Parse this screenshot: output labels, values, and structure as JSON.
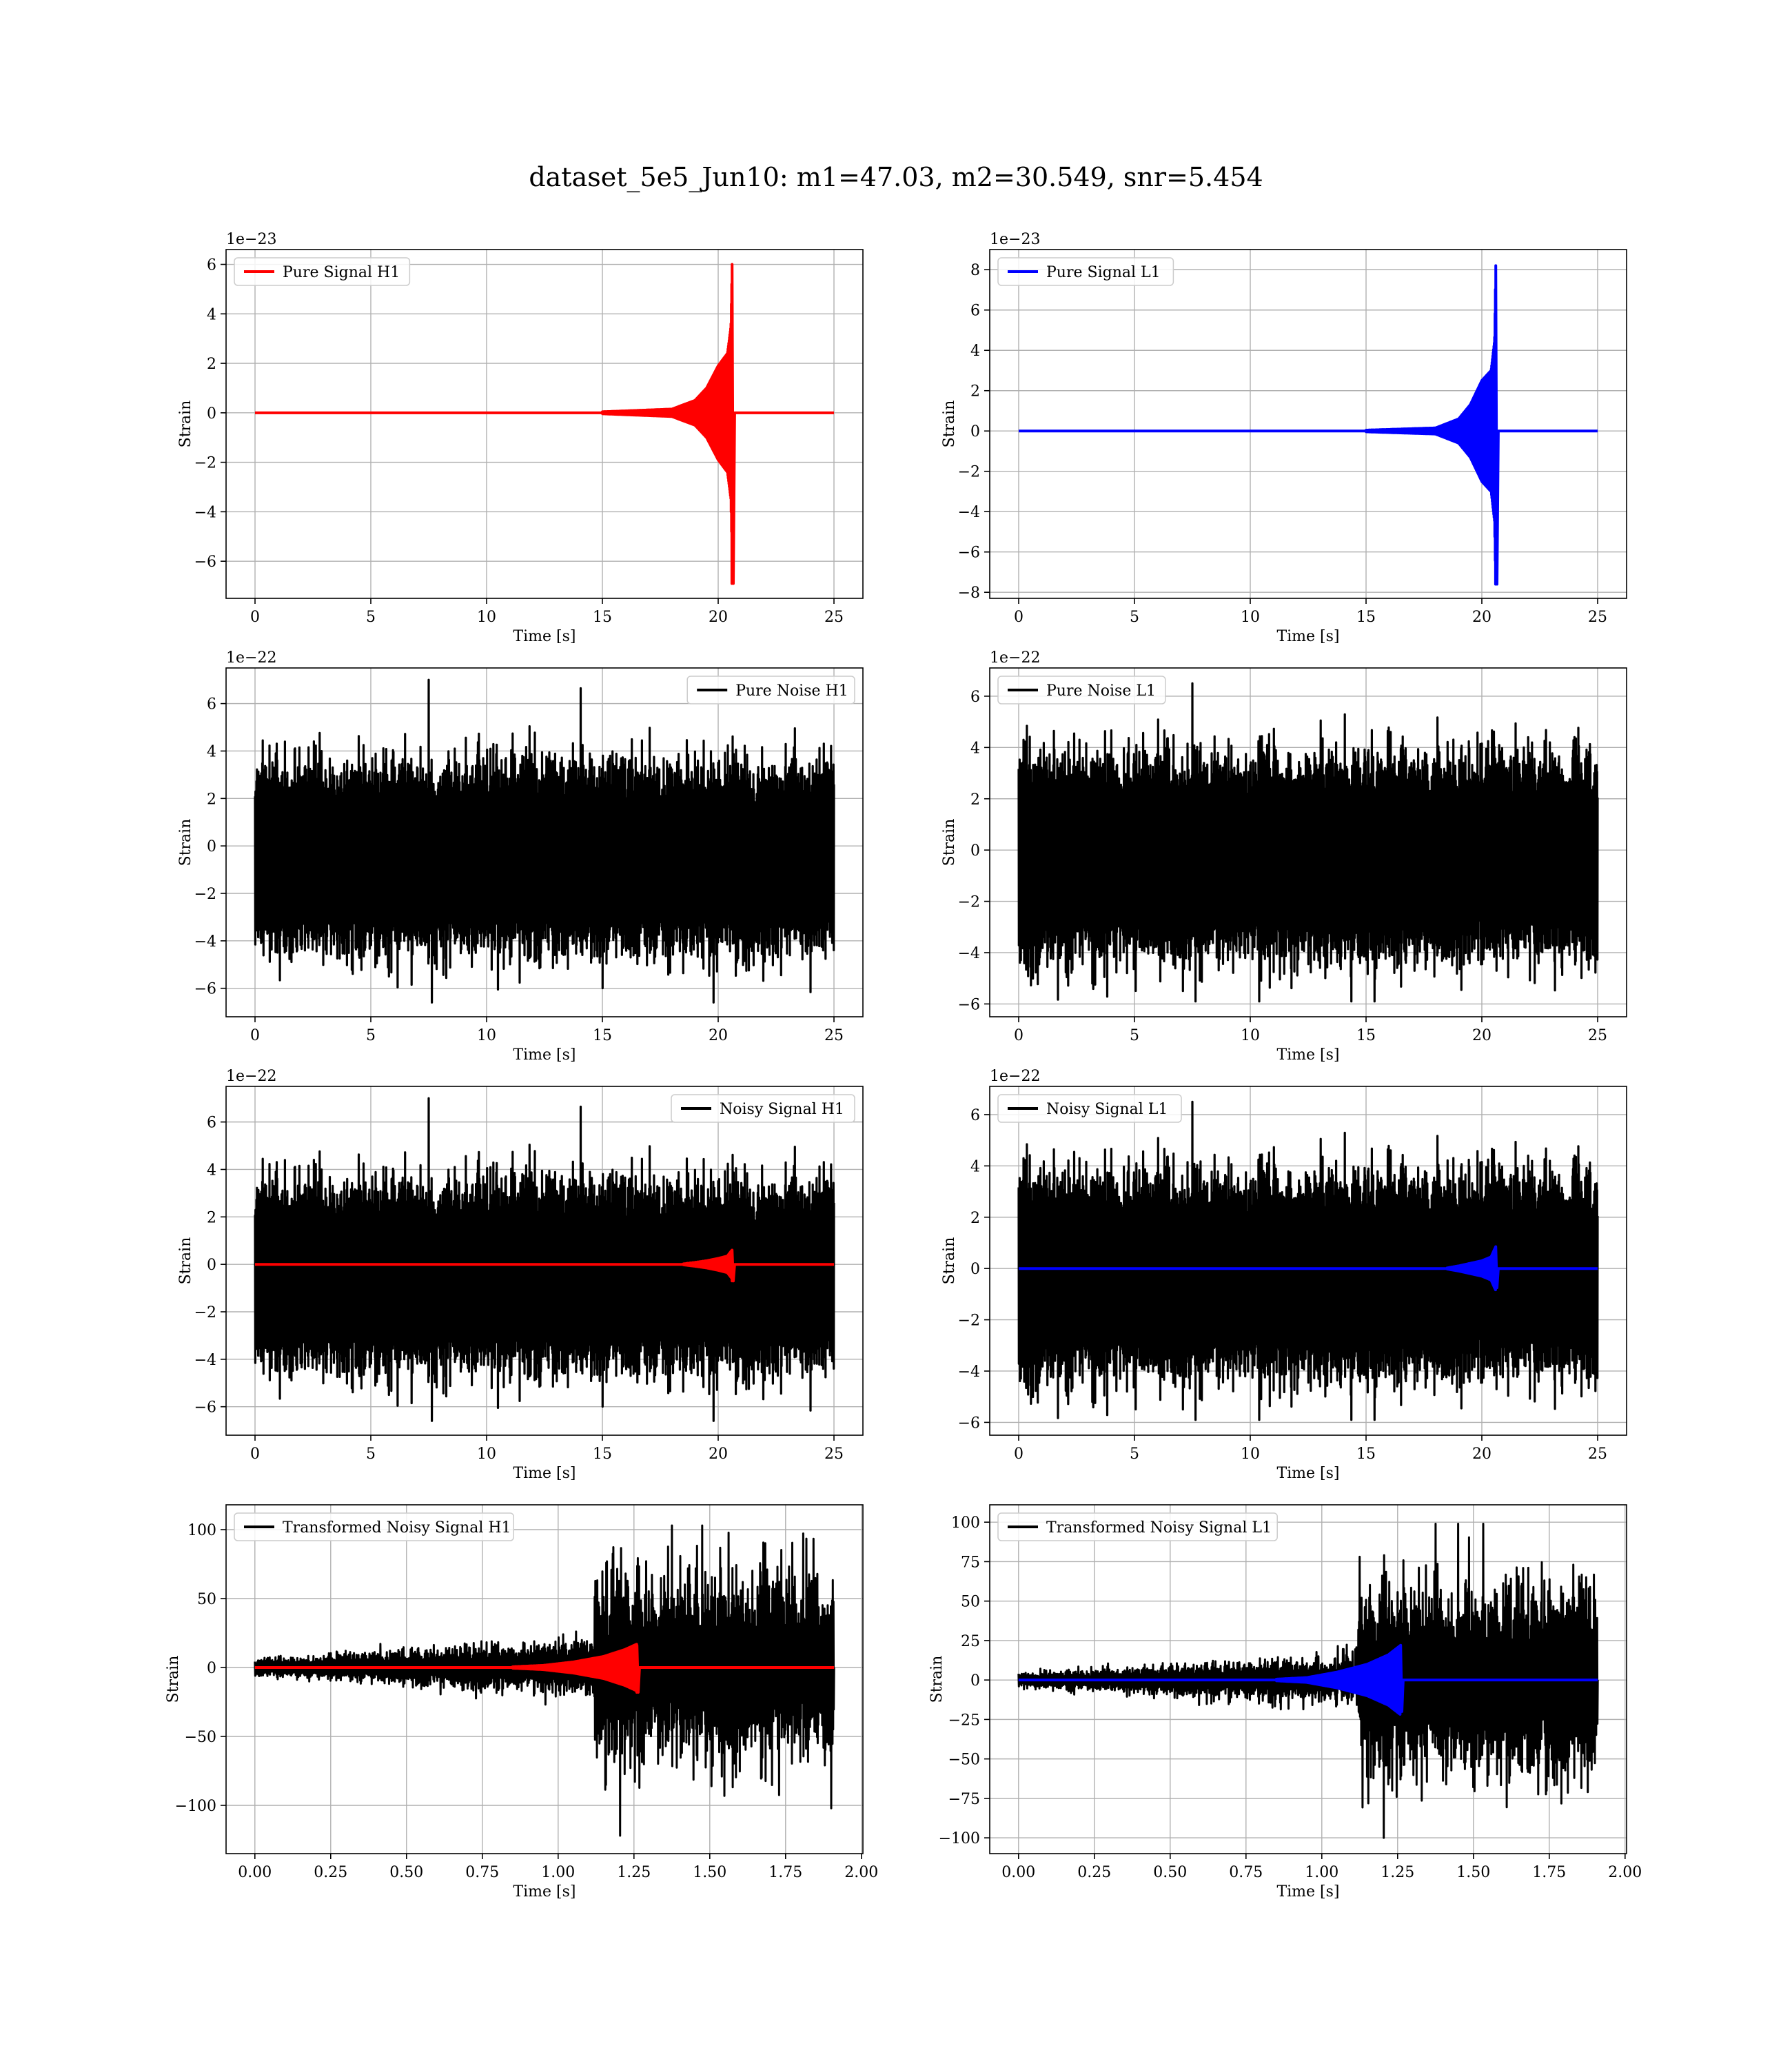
{
  "figure": {
    "title": "dataset_5e5_Jun10: m1=47.03, m2=30.549, snr=5.454"
  },
  "colors": {
    "h1_signal": "#ff0000",
    "l1_signal": "#0000ff",
    "noise": "#000000",
    "grid": "#b0b0b0"
  },
  "chart_data": [
    {
      "id": "pure-signal-h1",
      "type": "line",
      "legend": "Pure Signal H1",
      "legend_loc": "upper left",
      "xlabel": "Time [s]",
      "ylabel": "Strain",
      "offset_text": "1e−23",
      "xlim": [
        -1.25,
        26.25
      ],
      "ylim": [
        -7.5,
        6.6
      ],
      "xticks": [
        0,
        5,
        10,
        15,
        20,
        25
      ],
      "yticks": [
        -6,
        -4,
        -2,
        0,
        2,
        4,
        6
      ],
      "grid": true,
      "series": [
        {
          "kind": "chirp",
          "color": "#ff0000",
          "t_merge": 20.6,
          "peak_pos": 6.0,
          "peak_neg": -6.9,
          "envelope": [
            [
              0,
              0.0
            ],
            [
              15.0,
              0.04
            ],
            [
              18.0,
              0.15
            ],
            [
              19.0,
              0.5
            ],
            [
              19.5,
              1.0
            ],
            [
              20.0,
              1.9
            ],
            [
              20.4,
              2.4
            ],
            [
              20.55,
              3.5
            ],
            [
              20.6,
              6.0
            ]
          ]
        }
      ]
    },
    {
      "id": "pure-signal-l1",
      "type": "line",
      "legend": "Pure Signal L1",
      "legend_loc": "upper left",
      "xlabel": "Time [s]",
      "ylabel": "Strain",
      "offset_text": "1e−23",
      "xlim": [
        -1.25,
        26.25
      ],
      "ylim": [
        -8.3,
        9.0
      ],
      "xticks": [
        0,
        5,
        10,
        15,
        20,
        25
      ],
      "yticks": [
        -8,
        -6,
        -4,
        -2,
        0,
        2,
        4,
        6,
        8
      ],
      "grid": true,
      "series": [
        {
          "kind": "chirp",
          "color": "#0000ff",
          "t_merge": 20.6,
          "peak_pos": 8.2,
          "peak_neg": -7.6,
          "envelope": [
            [
              0,
              0.0
            ],
            [
              15.0,
              0.04
            ],
            [
              18.0,
              0.15
            ],
            [
              19.0,
              0.6
            ],
            [
              19.5,
              1.3
            ],
            [
              20.0,
              2.5
            ],
            [
              20.4,
              3.0
            ],
            [
              20.55,
              4.5
            ],
            [
              20.6,
              8.2
            ]
          ]
        }
      ]
    },
    {
      "id": "pure-noise-h1",
      "type": "line",
      "legend": "Pure Noise H1",
      "legend_loc": "upper right",
      "xlabel": "Time [s]",
      "ylabel": "Strain",
      "offset_text": "1e−22",
      "xlim": [
        -1.25,
        26.25
      ],
      "ylim": [
        -7.2,
        7.5
      ],
      "xticks": [
        0,
        5,
        10,
        15,
        20,
        25
      ],
      "yticks": [
        -6,
        -4,
        -2,
        0,
        2,
        4,
        6
      ],
      "grid": true,
      "series": [
        {
          "kind": "noise",
          "color": "#000000",
          "t_start": 0,
          "t_end": 25,
          "center": -0.5,
          "max": 7.0,
          "min": -6.6,
          "core_top": 3.0,
          "core_bottom": -3.2,
          "seed": 11
        }
      ]
    },
    {
      "id": "pure-noise-l1",
      "type": "line",
      "legend": "Pure Noise L1",
      "legend_loc": "upper left",
      "xlabel": "Time [s]",
      "ylabel": "Strain",
      "offset_text": "1e−22",
      "xlim": [
        -1.25,
        26.25
      ],
      "ylim": [
        -6.5,
        7.1
      ],
      "xticks": [
        0,
        5,
        10,
        15,
        20,
        25
      ],
      "yticks": [
        -6,
        -4,
        -2,
        0,
        2,
        4,
        6
      ],
      "grid": true,
      "series": [
        {
          "kind": "noise",
          "color": "#000000",
          "t_start": 0,
          "t_end": 25,
          "center": -0.3,
          "max": 6.5,
          "min": -5.9,
          "core_top": 3.0,
          "core_bottom": -3.3,
          "seed": 23
        }
      ]
    },
    {
      "id": "noisy-signal-h1",
      "type": "line",
      "legend": "Noisy Signal H1",
      "legend_loc": "upper right",
      "xlabel": "Time [s]",
      "ylabel": "Strain",
      "offset_text": "1e−22",
      "xlim": [
        -1.25,
        26.25
      ],
      "ylim": [
        -7.2,
        7.5
      ],
      "xticks": [
        0,
        5,
        10,
        15,
        20,
        25
      ],
      "yticks": [
        -6,
        -4,
        -2,
        0,
        2,
        4,
        6
      ],
      "grid": true,
      "series": [
        {
          "kind": "noise",
          "color": "#000000",
          "t_start": 0,
          "t_end": 25,
          "center": -0.5,
          "max": 7.0,
          "min": -6.6,
          "core_top": 3.0,
          "core_bottom": -3.2,
          "seed": 11
        },
        {
          "kind": "chirp",
          "color": "#ff0000",
          "t_merge": 20.6,
          "peak_pos": 0.6,
          "peak_neg": -0.7,
          "envelope": [
            [
              0,
              0.0
            ],
            [
              18.5,
              0.02
            ],
            [
              19.0,
              0.08
            ],
            [
              19.5,
              0.15
            ],
            [
              20.0,
              0.25
            ],
            [
              20.4,
              0.35
            ],
            [
              20.6,
              0.6
            ]
          ]
        }
      ]
    },
    {
      "id": "noisy-signal-l1",
      "type": "line",
      "legend": "Noisy Signal L1",
      "legend_loc": "upper left",
      "xlabel": "Time [s]",
      "ylabel": "Strain",
      "offset_text": "1e−22",
      "xlim": [
        -1.25,
        26.25
      ],
      "ylim": [
        -6.5,
        7.1
      ],
      "xticks": [
        0,
        5,
        10,
        15,
        20,
        25
      ],
      "yticks": [
        -6,
        -4,
        -2,
        0,
        2,
        4,
        6
      ],
      "grid": true,
      "series": [
        {
          "kind": "noise",
          "color": "#000000",
          "t_start": 0,
          "t_end": 25,
          "center": -0.3,
          "max": 6.5,
          "min": -5.9,
          "core_top": 3.0,
          "core_bottom": -3.3,
          "seed": 23
        },
        {
          "kind": "chirp",
          "color": "#0000ff",
          "t_merge": 20.6,
          "peak_pos": 0.85,
          "peak_neg": -0.75,
          "envelope": [
            [
              0,
              0.0
            ],
            [
              18.5,
              0.02
            ],
            [
              19.0,
              0.1
            ],
            [
              19.5,
              0.2
            ],
            [
              20.0,
              0.3
            ],
            [
              20.4,
              0.45
            ],
            [
              20.6,
              0.85
            ]
          ]
        }
      ]
    },
    {
      "id": "transformed-noisy-signal-h1",
      "type": "line",
      "legend": "Transformed Noisy Signal H1",
      "legend_loc": "upper left",
      "xlabel": "Time [s]",
      "ylabel": "Strain",
      "offset_text": "",
      "xlim": [
        -0.095,
        2.005
      ],
      "ylim": [
        -135,
        118
      ],
      "xticks": [
        "0.00",
        "0.25",
        "0.50",
        "0.75",
        "1.00",
        "1.25",
        "1.50",
        "1.75",
        "2.00"
      ],
      "yticks": [
        -100,
        -50,
        0,
        50,
        100
      ],
      "grid": true,
      "series": [
        {
          "kind": "transformed",
          "color": "#000000",
          "t_start": 0,
          "t_end": 1.91,
          "t_jump": 1.12,
          "pre_amp": [
            5,
            18
          ],
          "post_amp": 60,
          "max": 103,
          "min": -122,
          "seed": 37
        },
        {
          "kind": "chirp",
          "color": "#ff0000",
          "t_merge": 1.26,
          "peak_pos": 16,
          "peak_neg": -18,
          "envelope": [
            [
              0,
              0.0
            ],
            [
              0.85,
              0.5
            ],
            [
              0.95,
              1.5
            ],
            [
              1.05,
              4
            ],
            [
              1.15,
              8
            ],
            [
              1.22,
              13
            ],
            [
              1.26,
              17
            ]
          ]
        }
      ]
    },
    {
      "id": "transformed-noisy-signal-l1",
      "type": "line",
      "legend": "Transformed Noisy Signal L1",
      "legend_loc": "upper left",
      "xlabel": "Time [s]",
      "ylabel": "Strain",
      "offset_text": "",
      "xlim": [
        -0.095,
        2.005
      ],
      "ylim": [
        -110,
        111
      ],
      "xticks": [
        "0.00",
        "0.25",
        "0.50",
        "0.75",
        "1.00",
        "1.25",
        "1.50",
        "1.75",
        "2.00"
      ],
      "yticks": [
        -100,
        -75,
        -50,
        -25,
        0,
        25,
        50,
        75,
        100
      ],
      "grid": true,
      "series": [
        {
          "kind": "transformed",
          "color": "#000000",
          "t_start": 0,
          "t_end": 1.91,
          "t_jump": 1.12,
          "pre_amp": [
            4,
            14
          ],
          "post_amp": 55,
          "max": 99,
          "min": -100,
          "seed": 53
        },
        {
          "kind": "chirp",
          "color": "#0000ff",
          "t_merge": 1.26,
          "peak_pos": 22,
          "peak_neg": -20,
          "envelope": [
            [
              0,
              0.0
            ],
            [
              0.85,
              0.5
            ],
            [
              0.95,
              1.5
            ],
            [
              1.05,
              5
            ],
            [
              1.15,
              10
            ],
            [
              1.22,
              16
            ],
            [
              1.26,
              22
            ]
          ]
        }
      ]
    }
  ]
}
